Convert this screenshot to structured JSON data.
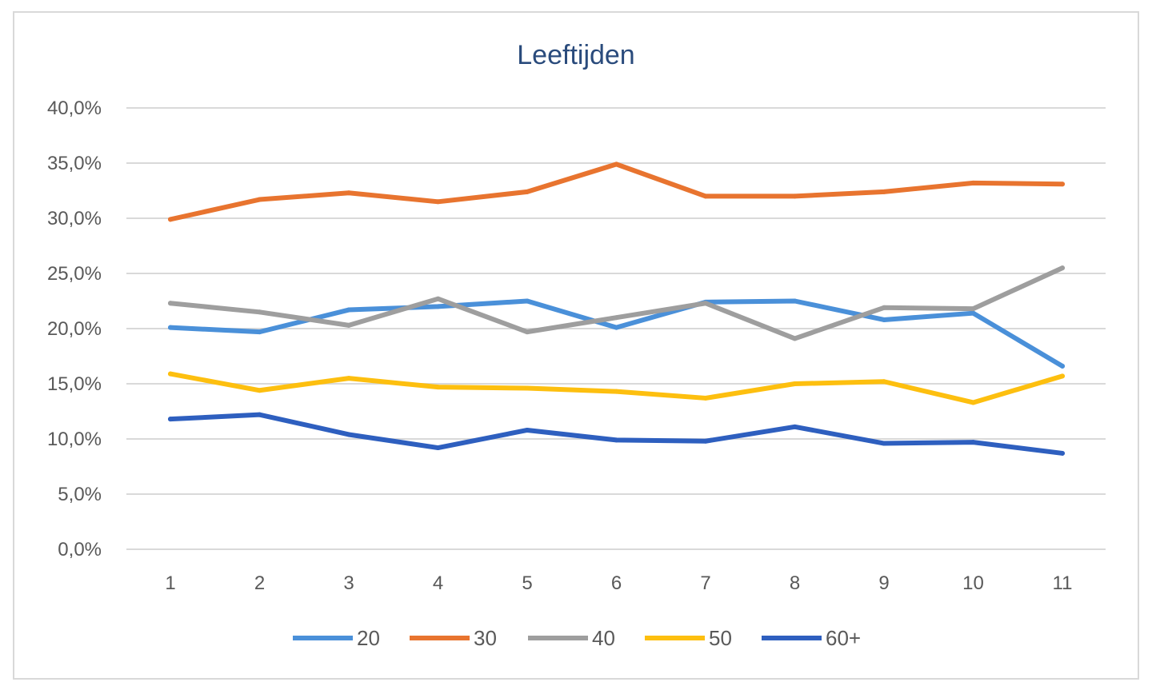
{
  "chart_data": {
    "type": "line",
    "title": "Leeftijden",
    "xlabel": "",
    "ylabel": "",
    "x": [
      1,
      2,
      3,
      4,
      5,
      6,
      7,
      8,
      9,
      10,
      11
    ],
    "x_tick_labels": [
      "1",
      "2",
      "3",
      "4",
      "5",
      "6",
      "7",
      "8",
      "9",
      "10",
      "11"
    ],
    "ylim": [
      0,
      40
    ],
    "y_ticks": [
      0,
      5,
      10,
      15,
      20,
      25,
      30,
      35,
      40
    ],
    "y_tick_labels": [
      "0,0%",
      "5,0%",
      "10,0%",
      "15,0%",
      "20,0%",
      "25,0%",
      "30,0%",
      "35,0%",
      "40,0%"
    ],
    "grid": true,
    "legend_position": "bottom",
    "series": [
      {
        "name": "20",
        "color": "#4a90d9",
        "values": [
          20.1,
          19.7,
          21.7,
          22.0,
          22.5,
          20.1,
          22.4,
          22.5,
          20.8,
          21.4,
          16.6
        ]
      },
      {
        "name": "30",
        "color": "#e8742f",
        "values": [
          29.9,
          31.7,
          32.3,
          31.5,
          32.4,
          34.9,
          32.0,
          32.0,
          32.4,
          33.2,
          33.1
        ]
      },
      {
        "name": "40",
        "color": "#9e9e9e",
        "values": [
          22.3,
          21.5,
          20.3,
          22.7,
          19.7,
          21.0,
          22.3,
          19.1,
          21.9,
          21.8,
          25.5
        ]
      },
      {
        "name": "50",
        "color": "#fdbf0f",
        "values": [
          15.9,
          14.4,
          15.5,
          14.7,
          14.6,
          14.3,
          13.7,
          15.0,
          15.2,
          13.3,
          15.7
        ]
      },
      {
        "name": "60+",
        "color": "#2e5fbf",
        "values": [
          11.8,
          12.2,
          10.4,
          9.2,
          10.8,
          9.9,
          9.8,
          11.1,
          9.6,
          9.7,
          8.7
        ]
      }
    ]
  }
}
